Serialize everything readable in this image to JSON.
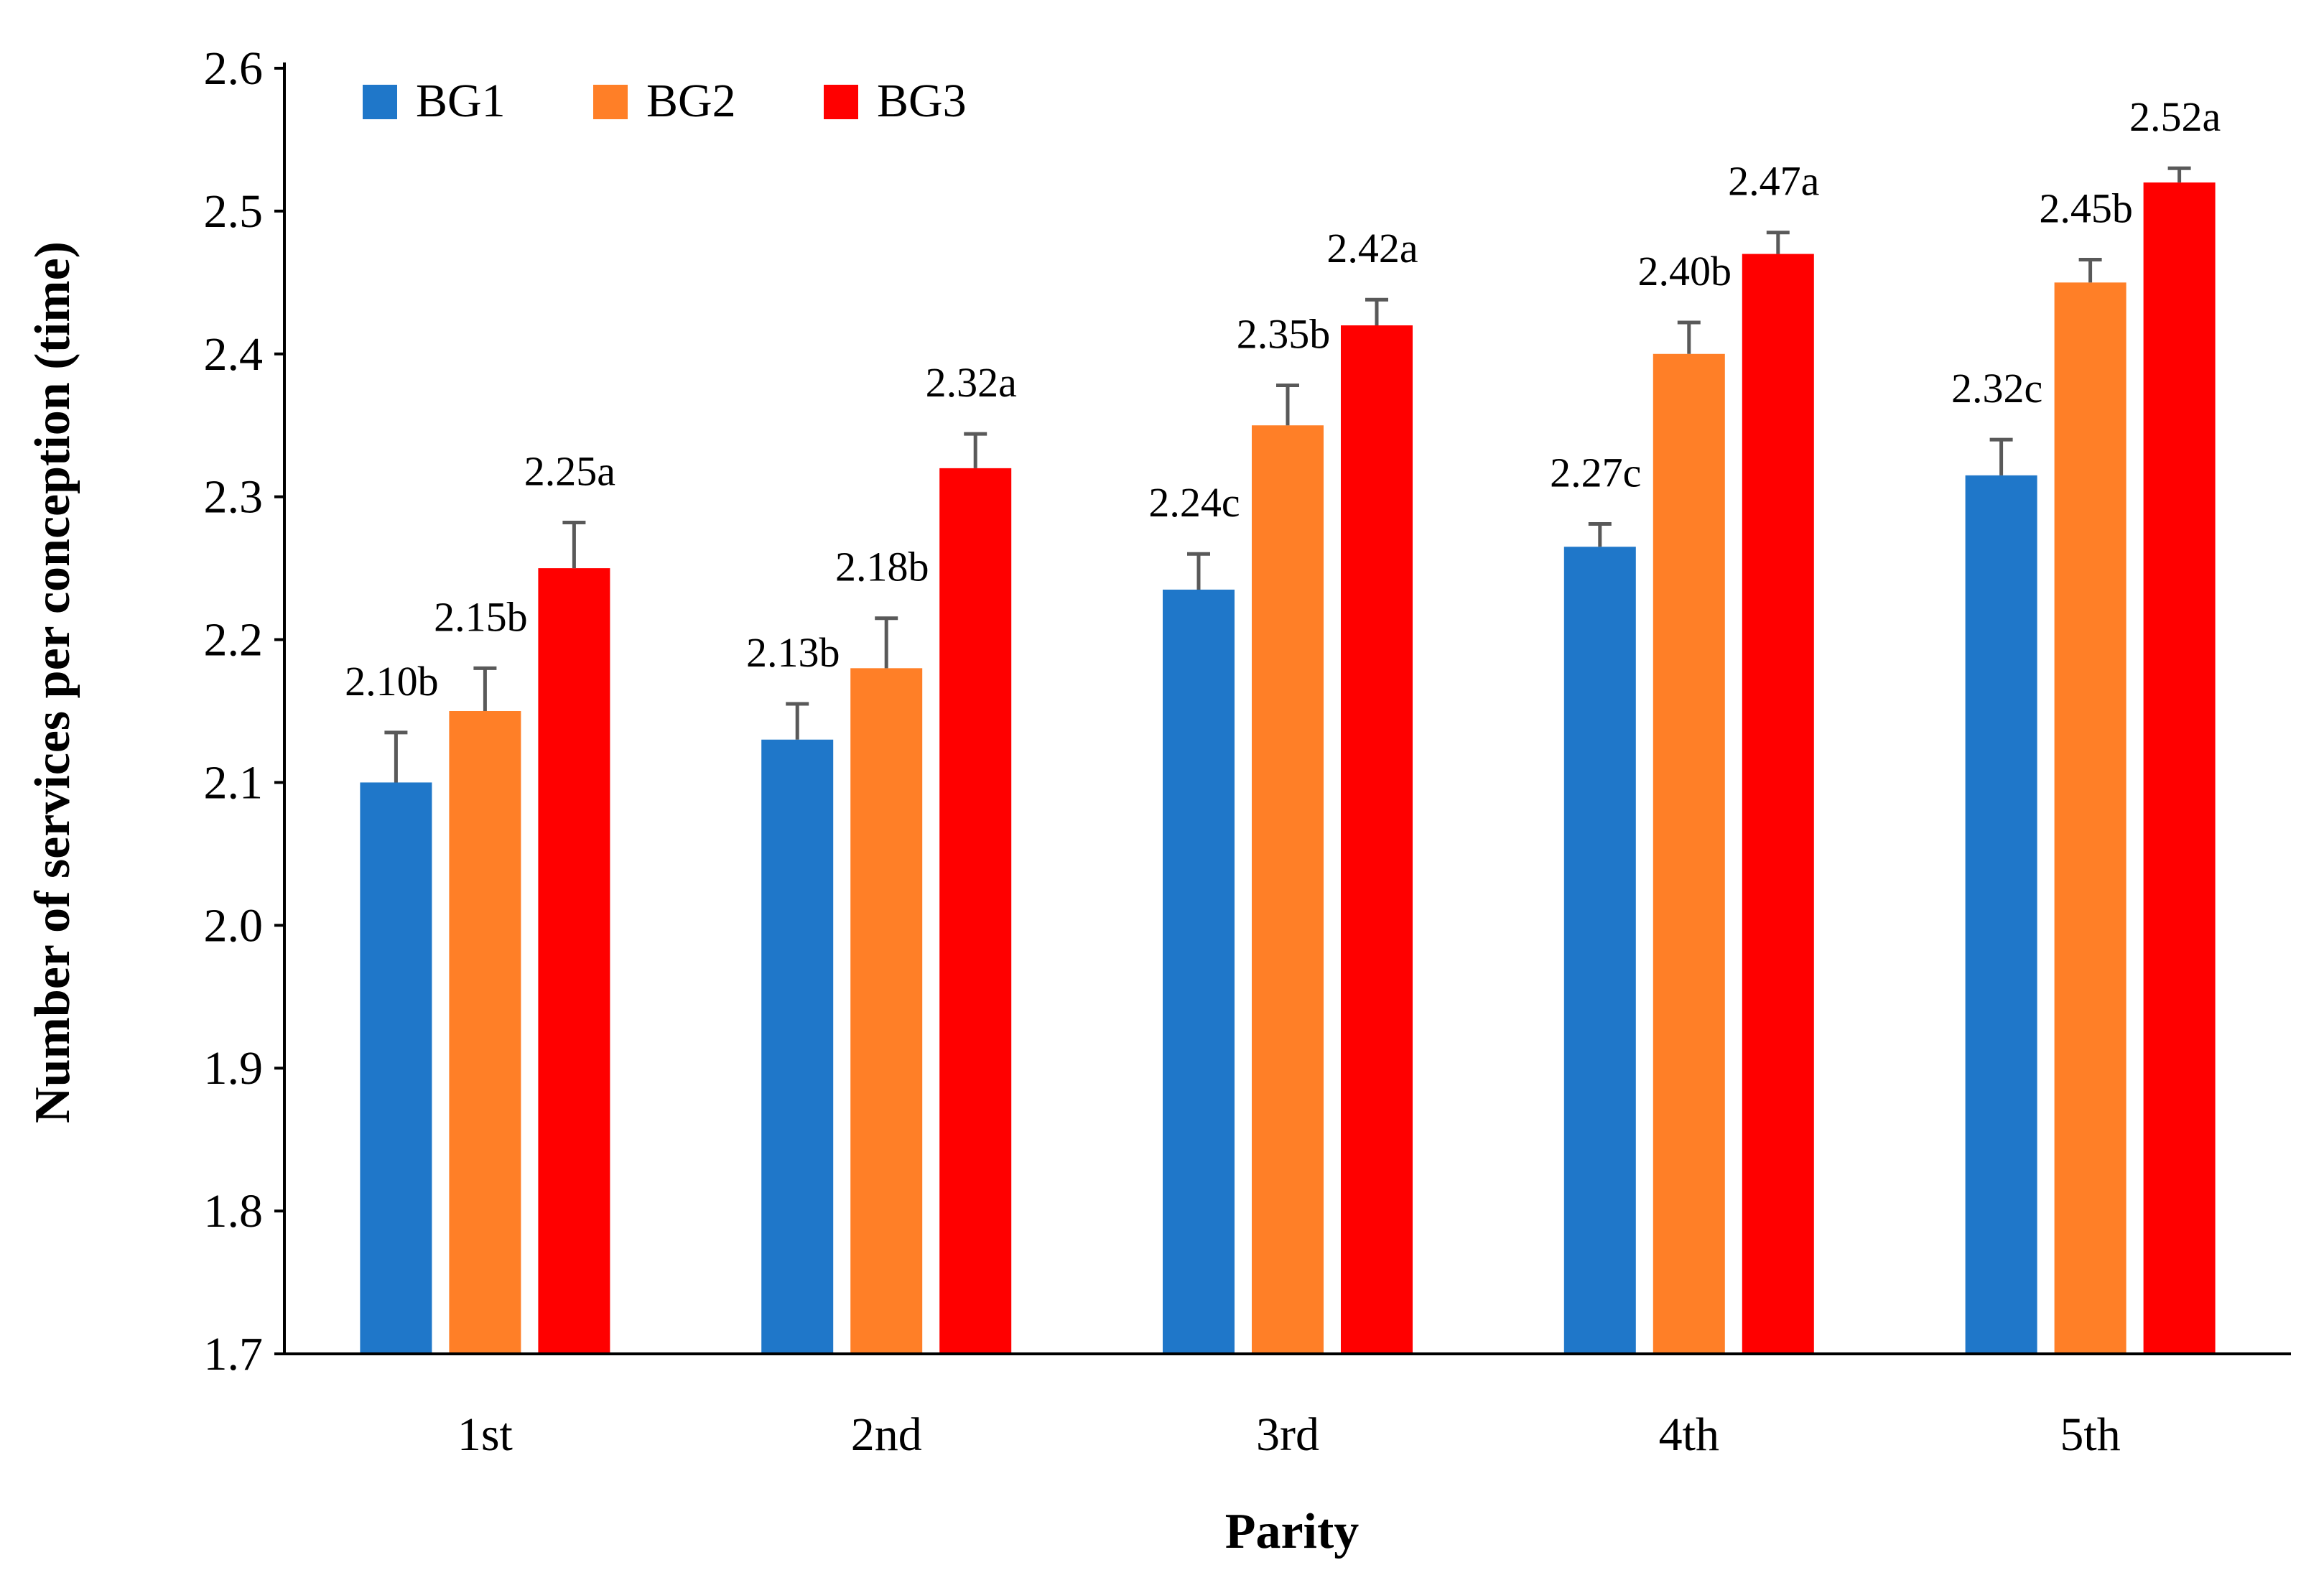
{
  "chart_data": {
    "type": "bar",
    "title": "",
    "xlabel": "Parity",
    "ylabel": "Number of services per conception (time)",
    "ylim": [
      1.7,
      2.6
    ],
    "yticks": [
      "1.7",
      "1.8",
      "1.9",
      "2.0",
      "2.1",
      "2.2",
      "2.3",
      "2.4",
      "2.5",
      "2.6"
    ],
    "categories": [
      "1st",
      "2nd",
      "3rd",
      "4th",
      "5th"
    ],
    "legend_position": "top-left",
    "grid": false,
    "series": [
      {
        "name": "BG1",
        "color": "#1f77c9",
        "values": [
          2.1,
          2.13,
          2.235,
          2.265,
          2.315
        ],
        "errors": [
          0.035,
          0.025,
          0.025,
          0.016,
          0.025
        ],
        "labels": [
          "2.10b",
          "2.13b",
          "2.24c",
          "2.27c",
          "2.32c"
        ]
      },
      {
        "name": "BG2",
        "color": "#ff7f27",
        "values": [
          2.15,
          2.18,
          2.35,
          2.4,
          2.45
        ],
        "errors": [
          0.03,
          0.035,
          0.028,
          0.022,
          0.016
        ],
        "labels": [
          "2.15b",
          "2.18b",
          "2.35b",
          "2.40b",
          "2.45b"
        ]
      },
      {
        "name": "BG3",
        "color": "#ff0000",
        "values": [
          2.25,
          2.32,
          2.42,
          2.47,
          2.52
        ],
        "errors": [
          0.032,
          0.024,
          0.018,
          0.015,
          0.01
        ],
        "labels": [
          "2.25a",
          "2.32a",
          "2.42a",
          "2.47a",
          "2.52a"
        ]
      }
    ]
  }
}
